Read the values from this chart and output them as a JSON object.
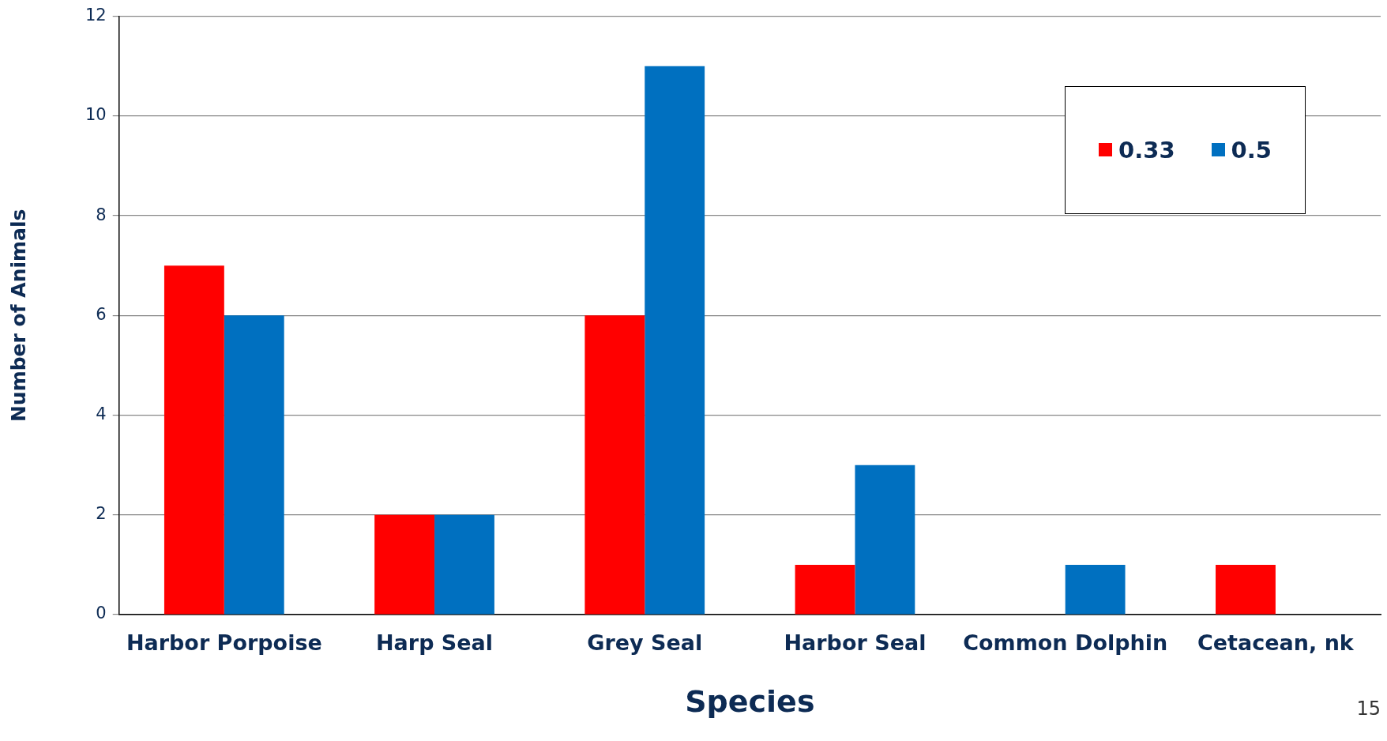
{
  "chart_data": {
    "type": "bar",
    "xlabel": "Species",
    "ylabel": "Number of Animals",
    "categories": [
      "Harbor Porpoise",
      "Harp Seal",
      "Grey Seal",
      "Harbor Seal",
      "Common Dolphin",
      "Cetacean, nk"
    ],
    "series": [
      {
        "name": "0.33",
        "color": "#ff0000",
        "values": [
          7,
          2,
          6,
          1,
          0,
          1
        ]
      },
      {
        "name": "0.5",
        "color": "#0070c0",
        "values": [
          6,
          2,
          11,
          3,
          1,
          0
        ]
      }
    ],
    "ylim": [
      0,
      12
    ],
    "yticks": [
      0,
      2,
      4,
      6,
      8,
      10,
      12
    ],
    "grid": "y",
    "legend": "top right",
    "annotations": [
      "15"
    ]
  }
}
